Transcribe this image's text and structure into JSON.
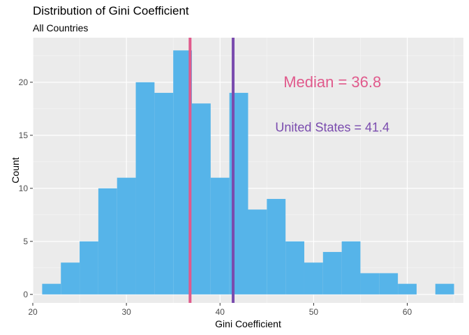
{
  "chart_data": {
    "type": "bar",
    "title": "Distribution of Gini Coefficient",
    "subtitle": "All Countries",
    "xlabel": "Gini Coefficient",
    "ylabel": "Count",
    "xlim": [
      20,
      66
    ],
    "ylim": [
      -0.8,
      24.2
    ],
    "x_ticks": [
      20,
      30,
      40,
      50,
      60
    ],
    "y_ticks": [
      0,
      5,
      10,
      15,
      20
    ],
    "bin_width": 2,
    "bins": [
      {
        "start": 21,
        "count": 1
      },
      {
        "start": 23,
        "count": 3
      },
      {
        "start": 25,
        "count": 5
      },
      {
        "start": 27,
        "count": 10
      },
      {
        "start": 29,
        "count": 11
      },
      {
        "start": 31,
        "count": 20
      },
      {
        "start": 33,
        "count": 19
      },
      {
        "start": 35,
        "count": 23
      },
      {
        "start": 37,
        "count": 18
      },
      {
        "start": 39,
        "count": 11
      },
      {
        "start": 41,
        "count": 19
      },
      {
        "start": 43,
        "count": 8
      },
      {
        "start": 45,
        "count": 9
      },
      {
        "start": 47,
        "count": 5
      },
      {
        "start": 49,
        "count": 3
      },
      {
        "start": 51,
        "count": 4
      },
      {
        "start": 53,
        "count": 5
      },
      {
        "start": 55,
        "count": 2
      },
      {
        "start": 57,
        "count": 2
      },
      {
        "start": 59,
        "count": 1
      },
      {
        "start": 61,
        "count": 0
      },
      {
        "start": 63,
        "count": 1
      }
    ],
    "vlines": [
      {
        "name": "Median",
        "x": 36.8,
        "color": "#E05A8C"
      },
      {
        "name": "United States",
        "x": 41.4,
        "color": "#7A4BAE"
      }
    ],
    "annotations": [
      {
        "text": "Median = 36.8",
        "x": 52,
        "y": 20,
        "color": "#E05A8C"
      },
      {
        "text": "United States = 41.4",
        "x": 52,
        "y": 15.8,
        "color": "#7A4BAE"
      }
    ],
    "bar_color": "#56B4E9",
    "panel_background": "#EBEBEB",
    "grid": true
  }
}
